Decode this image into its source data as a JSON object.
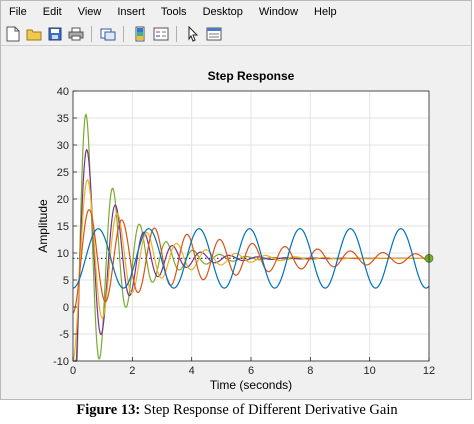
{
  "menu": [
    "File",
    "Edit",
    "View",
    "Insert",
    "Tools",
    "Desktop",
    "Window",
    "Help"
  ],
  "toolbar": {
    "icons": [
      "new-figure-icon",
      "open-file-icon",
      "save-icon",
      "print-icon",
      "link-plot-icon",
      "insert-colorbar-icon",
      "insert-legend-icon",
      "edit-plot-icon",
      "property-inspector-icon"
    ]
  },
  "caption": {
    "label": "Figure 13:",
    "text": " Step Response of Different Derivative Gain"
  },
  "chart_data": {
    "type": "line",
    "title": "Step Response",
    "xlabel": "Time (seconds)",
    "ylabel": "Amplitude",
    "xlim": [
      0,
      12
    ],
    "ylim": [
      -10,
      40
    ],
    "xticks": [
      0,
      2,
      4,
      6,
      8,
      10,
      12
    ],
    "yticks": [
      -10,
      -5,
      0,
      5,
      10,
      15,
      20,
      25,
      30,
      35,
      40
    ],
    "grid": true,
    "final_value": 9,
    "reference_line": {
      "style": "dotted",
      "color": "#1f3f8f",
      "value": 9
    },
    "end_marker": {
      "x": 12,
      "y": 9,
      "color": "#77ac30"
    },
    "series": [
      {
        "color": "#77ac30",
        "peak": 35.5,
        "peak_time": 0.45,
        "undershoot": -9.5
      },
      {
        "color": "#7e2f8e",
        "peak": 29,
        "peak_time": 0.48,
        "undershoot": -5
      },
      {
        "color": "#edb120",
        "peak": 23.5,
        "peak_time": 0.5,
        "undershoot": -2
      },
      {
        "color": "#d95319",
        "peak": 18,
        "peak_time": 0.55,
        "undershoot": 1
      },
      {
        "color": "#0072bd",
        "peak": 14.5,
        "peak_time": 0.85,
        "undershoot": 3.5
      }
    ]
  }
}
